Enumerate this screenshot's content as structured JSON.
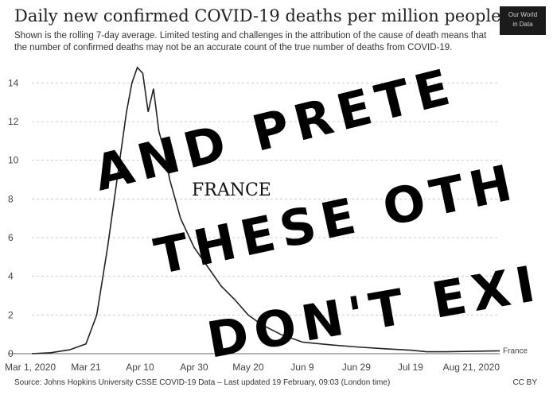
{
  "chart_data": {
    "type": "line",
    "title": "Daily new confirmed COVID-19 deaths per million people",
    "subtitle": "Shown is the rolling 7-day average. Limited testing and challenges in the attribution of the cause of death means that the number of confirmed deaths may not be an accurate count of the true number of deaths from COVID-19.",
    "x": [
      "2020-03-01",
      "2020-03-08",
      "2020-03-15",
      "2020-03-21",
      "2020-03-25",
      "2020-03-29",
      "2020-04-02",
      "2020-04-05",
      "2020-04-07",
      "2020-04-09",
      "2020-04-11",
      "2020-04-13",
      "2020-04-15",
      "2020-04-17",
      "2020-04-19",
      "2020-04-21",
      "2020-04-25",
      "2020-04-30",
      "2020-05-05",
      "2020-05-10",
      "2020-05-15",
      "2020-05-20",
      "2020-05-25",
      "2020-06-01",
      "2020-06-09",
      "2020-06-20",
      "2020-06-29",
      "2020-07-10",
      "2020-07-19",
      "2020-07-25",
      "2020-08-01",
      "2020-08-10",
      "2020-08-21"
    ],
    "series": [
      {
        "name": "France",
        "values": [
          0.0,
          0.05,
          0.2,
          0.5,
          2.0,
          5.5,
          9.5,
          12.5,
          14.0,
          14.8,
          14.5,
          12.5,
          13.7,
          11.5,
          10.5,
          9.0,
          7.0,
          5.5,
          4.5,
          3.5,
          2.8,
          2.0,
          1.5,
          1.0,
          0.6,
          0.45,
          0.35,
          0.25,
          0.18,
          0.1,
          0.1,
          0.12,
          0.15
        ]
      }
    ],
    "x_ticks": [
      "Mar 1, 2020",
      "Mar 21",
      "Apr 10",
      "Apr 30",
      "May 20",
      "Jun 9",
      "Jun 29",
      "Jul 19",
      "Aug 21, 2020"
    ],
    "x_tick_dates": [
      "2020-03-01",
      "2020-03-21",
      "2020-04-10",
      "2020-04-30",
      "2020-05-20",
      "2020-06-09",
      "2020-06-29",
      "2020-07-19",
      "2020-08-21"
    ],
    "y_ticks": [
      "0",
      "2",
      "4",
      "6",
      "8",
      "10",
      "12",
      "14"
    ],
    "ylim": [
      0,
      15
    ],
    "xlim": [
      "2020-03-01",
      "2020-08-21"
    ],
    "grid": true,
    "color": "#222222",
    "end_label": "France"
  },
  "annotation": "FRANCE",
  "handwriting": [
    "AND PRETE",
    "THESE OTH",
    "DON'T EXI"
  ],
  "source": "Source: Johns Hopkins University CSSE COVID-19 Data – Last updated 19 February, 09:03 (London time)",
  "license": "CC BY",
  "logo": [
    "Our World",
    "in Data"
  ]
}
